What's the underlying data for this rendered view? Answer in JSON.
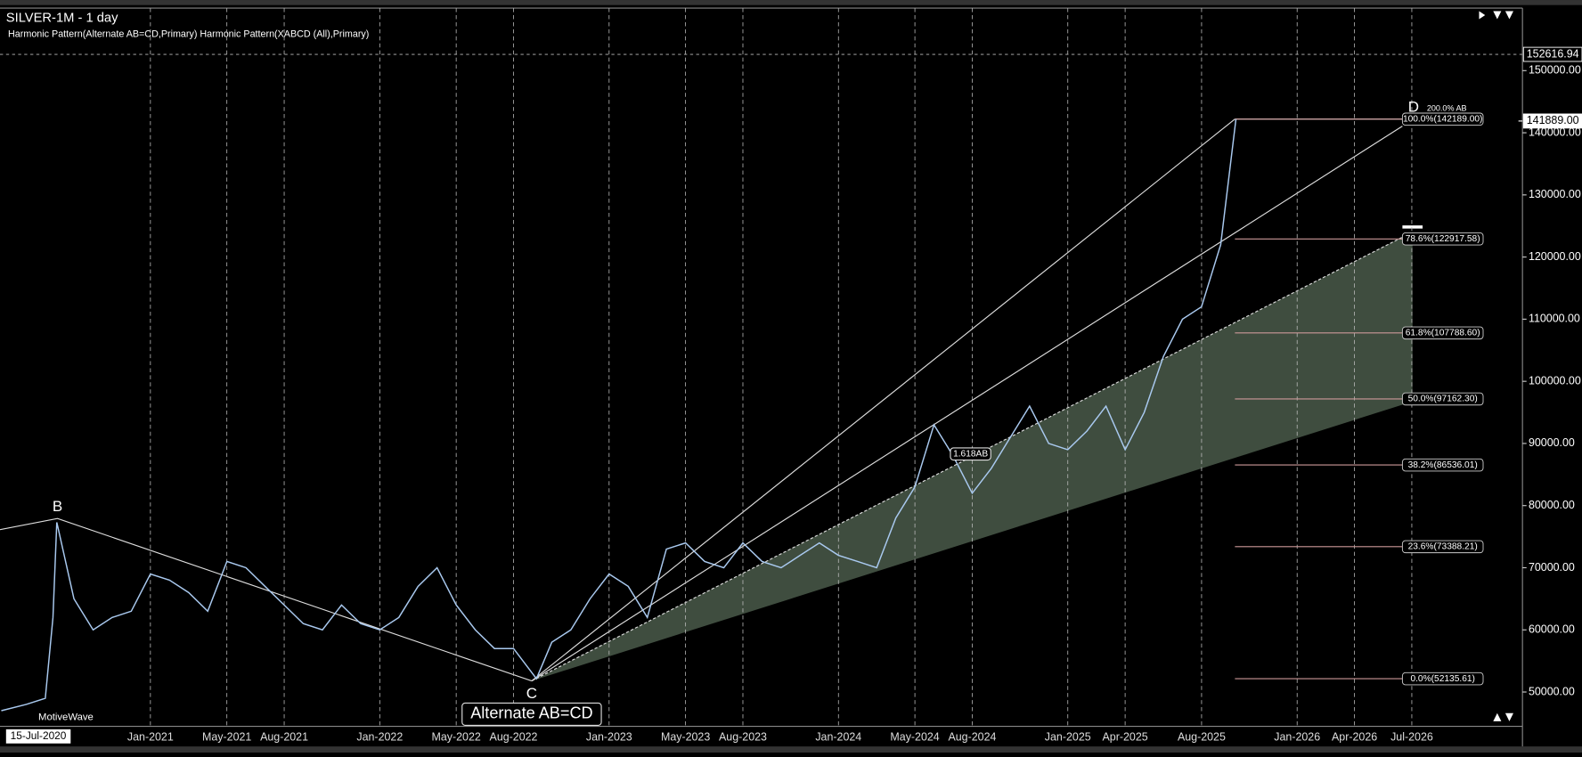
{
  "header": {
    "title": "SILVER-1M - 1 day",
    "subtitle": "Harmonic Pattern(Alternate AB=CD,Primary) Harmonic Pattern(XABCD (All),Primary)"
  },
  "chart_data": {
    "type": "line",
    "color": "#a9c9ef",
    "x": [
      4.2,
      5.5,
      6.5,
      6.9,
      7.1,
      8,
      9,
      10,
      11,
      12,
      13,
      14,
      15,
      16,
      17,
      18,
      19,
      20,
      21,
      22,
      23,
      24,
      25,
      26,
      27,
      28,
      29,
      30,
      31,
      32.2,
      33,
      34,
      35,
      36,
      37,
      38,
      39,
      40,
      41,
      42,
      43,
      44,
      45,
      46,
      47,
      48,
      49,
      50,
      51,
      52,
      53,
      54,
      55,
      56,
      57,
      58,
      59,
      60,
      61,
      62,
      63,
      64,
      65,
      66,
      67,
      68,
      68.8
    ],
    "values": [
      47000,
      48000,
      49000,
      62000,
      77300,
      65000,
      60000,
      62000,
      63000,
      69000,
      68000,
      66000,
      63000,
      71000,
      70000,
      67000,
      64000,
      61000,
      60000,
      64000,
      61000,
      60000,
      62000,
      67000,
      70000,
      64000,
      60000,
      57000,
      57000,
      52135.61,
      58000,
      60000,
      65000,
      69000,
      67000,
      62000,
      73000,
      74000,
      71000,
      70000,
      74000,
      71000,
      70000,
      72000,
      74000,
      72000,
      71000,
      70000,
      78000,
      83000,
      93000,
      88000,
      82000,
      86000,
      91000,
      96000,
      90000,
      89000,
      92000,
      96000,
      89000,
      95000,
      104000,
      110000,
      112000,
      122000,
      142189
    ],
    "xlim": [
      4.13,
      83.79
    ],
    "ylim": [
      44480,
      160065
    ],
    "xticks": [
      {
        "value": 12,
        "label": "Jan-2021"
      },
      {
        "value": 16,
        "label": "May-2021"
      },
      {
        "value": 19,
        "label": "Aug-2021"
      },
      {
        "value": 24,
        "label": "Jan-2022"
      },
      {
        "value": 28,
        "label": "May-2022"
      },
      {
        "value": 31,
        "label": "Aug-2022"
      },
      {
        "value": 36,
        "label": "Jan-2023"
      },
      {
        "value": 40,
        "label": "May-2023"
      },
      {
        "value": 43,
        "label": "Aug-2023"
      },
      {
        "value": 48,
        "label": "Jan-2024"
      },
      {
        "value": 52,
        "label": "May-2024"
      },
      {
        "value": 55,
        "label": "Aug-2024"
      },
      {
        "value": 60,
        "label": "Jan-2025"
      },
      {
        "value": 63,
        "label": "Apr-2025"
      },
      {
        "value": 67,
        "label": "Aug-2025"
      },
      {
        "value": 72,
        "label": "Jan-2026"
      },
      {
        "value": 75,
        "label": "Apr-2026"
      },
      {
        "value": 78,
        "label": "Jul-2026"
      }
    ],
    "yticks": [
      {
        "value": 50000,
        "label": "50000.00"
      },
      {
        "value": 60000,
        "label": "60000.00"
      },
      {
        "value": 70000,
        "label": "70000.00"
      },
      {
        "value": 80000,
        "label": "80000.00"
      },
      {
        "value": 90000,
        "label": "90000.00"
      },
      {
        "value": 100000,
        "label": "100000.00"
      },
      {
        "value": 110000,
        "label": "110000.00"
      },
      {
        "value": 120000,
        "label": "120000.00"
      },
      {
        "value": 130000,
        "label": "130000.00"
      },
      {
        "value": 140000,
        "label": "140000.00"
      },
      {
        "value": 150000,
        "label": "150000.00"
      }
    ],
    "grid": true,
    "fib_levels": [
      {
        "value": 142189,
        "label": "100.0%(142189.00)"
      },
      {
        "value": 122917.58,
        "label": "78.6%(122917.58)"
      },
      {
        "value": 107788.6,
        "label": "61.8%(107788.60)"
      },
      {
        "value": 97162.3,
        "label": "50.0%(97162.30)"
      },
      {
        "value": 86536.01,
        "label": "38.2%(86536.01)"
      },
      {
        "value": 73388.21,
        "label": "23.6%(73388.21)"
      },
      {
        "value": 52135.61,
        "label": "0.0%(52135.61)"
      }
    ],
    "price_markers": [
      {
        "value": 152616.94,
        "label": "152616.94"
      },
      {
        "value": 141889,
        "label": "141889.00"
      }
    ],
    "pattern_labels": [
      "B",
      "C",
      "D",
      "200.0% AB",
      "1.618AB",
      "Alternate AB=CD"
    ],
    "watermark": "MotiveWave",
    "cursor_date": "15-Jul-2020"
  }
}
